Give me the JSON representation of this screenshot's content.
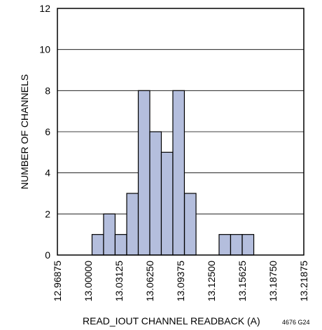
{
  "chart_data": {
    "type": "bar",
    "xlabel": "READ_IOUT CHANNEL READBACK (A)",
    "ylabel": "NUMBER OF CHANNELS",
    "figure_code": "4676 G24",
    "xlim": [
      12.96875,
      13.21875
    ],
    "ylim": [
      0,
      12
    ],
    "x_tick_labels": [
      "12.96875",
      "13.00000",
      "13.03125",
      "13.06250",
      "13.09375",
      "13.12500",
      "13.15625",
      "13.18750",
      "13.21875"
    ],
    "y_tick_labels": [
      "0",
      "2",
      "4",
      "6",
      "8",
      "10",
      "12"
    ],
    "bin_width": 0.0117,
    "bin_edges_start": [
      12.9922,
      13.0039,
      13.0156,
      13.0273,
      13.0391,
      13.0508,
      13.0625,
      13.0742,
      13.0859,
      13.0977,
      13.1094,
      13.1211,
      13.1328,
      13.1445,
      13.1563,
      13.168
    ],
    "values": [
      0,
      1,
      2,
      1,
      3,
      8,
      6,
      5,
      8,
      3,
      0,
      0,
      1,
      1,
      1,
      0
    ],
    "grid": true,
    "bar_color": "#b4bedd"
  }
}
